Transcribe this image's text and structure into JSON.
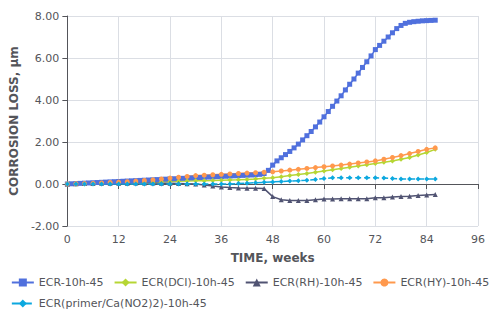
{
  "chart_data": {
    "type": "line",
    "xlabel": "TIME, weeks",
    "ylabel": "CORROSION LOSS, µm",
    "xlim": [
      0,
      96
    ],
    "ylim": [
      -2.0,
      8.0
    ],
    "xticks": [
      0,
      12,
      24,
      36,
      48,
      60,
      72,
      84,
      96
    ],
    "yticks": [
      {
        "value": -2.0,
        "label": "-2.00"
      },
      {
        "value": 0.0,
        "label": "0.00"
      },
      {
        "value": 2.0,
        "label": "2.00"
      },
      {
        "value": 4.0,
        "label": "4.00"
      },
      {
        "value": 6.0,
        "label": "6.00"
      },
      {
        "value": 8.0,
        "label": "8.00"
      }
    ],
    "grid": true,
    "legend": "bottom",
    "series": [
      {
        "name": "ECR-10h-45",
        "marker": "square",
        "line_style": "solid",
        "x": [
          0,
          1,
          2,
          3,
          4,
          5,
          6,
          7,
          8,
          9,
          10,
          11,
          12,
          13,
          14,
          15,
          16,
          17,
          18,
          19,
          20,
          21,
          22,
          23,
          24,
          25,
          26,
          27,
          28,
          29,
          30,
          31,
          32,
          33,
          34,
          35,
          36,
          37,
          38,
          39,
          40,
          41,
          42,
          43,
          44,
          45,
          46,
          47,
          48,
          49,
          50,
          51,
          52,
          53,
          54,
          55,
          56,
          57,
          58,
          59,
          60,
          61,
          62,
          63,
          64,
          65,
          66,
          67,
          68,
          69,
          70,
          71,
          72,
          73,
          74,
          75,
          76,
          77,
          78,
          79,
          80,
          81,
          82,
          83,
          84,
          85,
          86
        ],
        "values": [
          0.0,
          0.01,
          0.02,
          0.03,
          0.04,
          0.05,
          0.06,
          0.07,
          0.08,
          0.09,
          0.1,
          0.11,
          0.12,
          0.13,
          0.14,
          0.15,
          0.16,
          0.17,
          0.18,
          0.19,
          0.2,
          0.21,
          0.22,
          0.23,
          0.24,
          0.25,
          0.26,
          0.27,
          0.28,
          0.29,
          0.3,
          0.31,
          0.32,
          0.33,
          0.34,
          0.35,
          0.36,
          0.37,
          0.38,
          0.39,
          0.4,
          0.41,
          0.42,
          0.43,
          0.44,
          0.46,
          0.5,
          0.65,
          0.9,
          1.1,
          1.25,
          1.4,
          1.55,
          1.72,
          1.9,
          2.1,
          2.3,
          2.5,
          2.72,
          2.95,
          3.2,
          3.45,
          3.7,
          3.95,
          4.2,
          4.48,
          4.75,
          5.0,
          5.28,
          5.55,
          5.82,
          6.1,
          6.4,
          6.6,
          6.8,
          7.0,
          7.2,
          7.4,
          7.55,
          7.65,
          7.7,
          7.73,
          7.75,
          7.77,
          7.78,
          7.79,
          7.8
        ]
      },
      {
        "name": "ECR(DCI)-10h-45",
        "marker": "diamond",
        "line_style": "solid",
        "x": [
          0,
          2,
          4,
          6,
          8,
          10,
          12,
          14,
          16,
          18,
          20,
          22,
          24,
          26,
          28,
          30,
          32,
          34,
          36,
          38,
          40,
          42,
          44,
          46,
          48,
          50,
          52,
          54,
          56,
          58,
          60,
          62,
          64,
          66,
          68,
          70,
          72,
          74,
          76,
          78,
          80,
          82,
          84,
          86
        ],
        "values": [
          0.0,
          0.01,
          0.02,
          0.03,
          0.04,
          0.05,
          0.06,
          0.07,
          0.08,
          0.09,
          0.1,
          0.11,
          0.12,
          0.13,
          0.14,
          0.15,
          0.16,
          0.17,
          0.18,
          0.19,
          0.2,
          0.22,
          0.24,
          0.27,
          0.3,
          0.35,
          0.4,
          0.45,
          0.5,
          0.56,
          0.62,
          0.68,
          0.74,
          0.8,
          0.86,
          0.92,
          0.98,
          1.04,
          1.1,
          1.18,
          1.26,
          1.38,
          1.5,
          1.65
        ]
      },
      {
        "name": "ECR(RH)-10h-45",
        "marker": "triangle",
        "line_style": "solid",
        "x": [
          0,
          2,
          4,
          6,
          8,
          10,
          12,
          14,
          16,
          18,
          20,
          22,
          24,
          26,
          28,
          30,
          32,
          34,
          36,
          38,
          40,
          42,
          44,
          46,
          48,
          50,
          52,
          54,
          56,
          58,
          60,
          62,
          64,
          66,
          68,
          70,
          72,
          74,
          76,
          78,
          80,
          82,
          84,
          86
        ],
        "values": [
          0.0,
          0.01,
          0.02,
          0.02,
          0.03,
          0.03,
          0.04,
          0.04,
          0.05,
          0.05,
          0.05,
          0.04,
          0.03,
          0.02,
          0.01,
          0.0,
          -0.05,
          -0.1,
          -0.14,
          -0.17,
          -0.19,
          -0.2,
          -0.2,
          -0.22,
          -0.6,
          -0.75,
          -0.78,
          -0.78,
          -0.78,
          -0.75,
          -0.72,
          -0.72,
          -0.7,
          -0.7,
          -0.7,
          -0.7,
          -0.65,
          -0.65,
          -0.62,
          -0.6,
          -0.58,
          -0.55,
          -0.52,
          -0.5
        ]
      },
      {
        "name": "ECR(HY)-10h-45",
        "marker": "circle",
        "line_style": "solid",
        "x": [
          0,
          2,
          4,
          6,
          8,
          10,
          12,
          14,
          16,
          18,
          20,
          22,
          24,
          26,
          28,
          30,
          32,
          34,
          36,
          38,
          40,
          42,
          44,
          46,
          48,
          50,
          52,
          54,
          56,
          58,
          60,
          62,
          64,
          66,
          68,
          70,
          72,
          74,
          76,
          78,
          80,
          82,
          84,
          86
        ],
        "values": [
          0.0,
          0.01,
          0.02,
          0.03,
          0.05,
          0.07,
          0.09,
          0.11,
          0.14,
          0.17,
          0.2,
          0.24,
          0.28,
          0.32,
          0.36,
          0.4,
          0.42,
          0.44,
          0.46,
          0.48,
          0.5,
          0.52,
          0.54,
          0.56,
          0.58,
          0.62,
          0.66,
          0.7,
          0.74,
          0.78,
          0.82,
          0.86,
          0.9,
          0.95,
          1.0,
          1.05,
          1.1,
          1.18,
          1.26,
          1.35,
          1.45,
          1.55,
          1.65,
          1.72
        ]
      },
      {
        "name": "ECR(primer/Ca(NO2)2)-10h-45",
        "marker": "diamond",
        "line_style": "dashed",
        "x": [
          0,
          2,
          4,
          6,
          8,
          10,
          12,
          14,
          16,
          18,
          20,
          22,
          24,
          26,
          28,
          30,
          32,
          34,
          36,
          38,
          40,
          42,
          44,
          46,
          48,
          50,
          52,
          54,
          56,
          58,
          60,
          62,
          64,
          66,
          68,
          70,
          72,
          74,
          76,
          78,
          80,
          82,
          84,
          86
        ],
        "values": [
          0.0,
          0.0,
          0.0,
          0.0,
          0.0,
          0.0,
          0.0,
          0.0,
          0.0,
          0.0,
          0.0,
          0.0,
          0.0,
          0.0,
          0.0,
          0.0,
          0.0,
          0.0,
          0.0,
          0.0,
          0.02,
          0.04,
          0.06,
          0.08,
          0.1,
          0.12,
          0.14,
          0.16,
          0.18,
          0.22,
          0.26,
          0.3,
          0.3,
          0.3,
          0.3,
          0.3,
          0.3,
          0.28,
          0.26,
          0.24,
          0.24,
          0.24,
          0.24,
          0.24
        ]
      }
    ]
  }
}
